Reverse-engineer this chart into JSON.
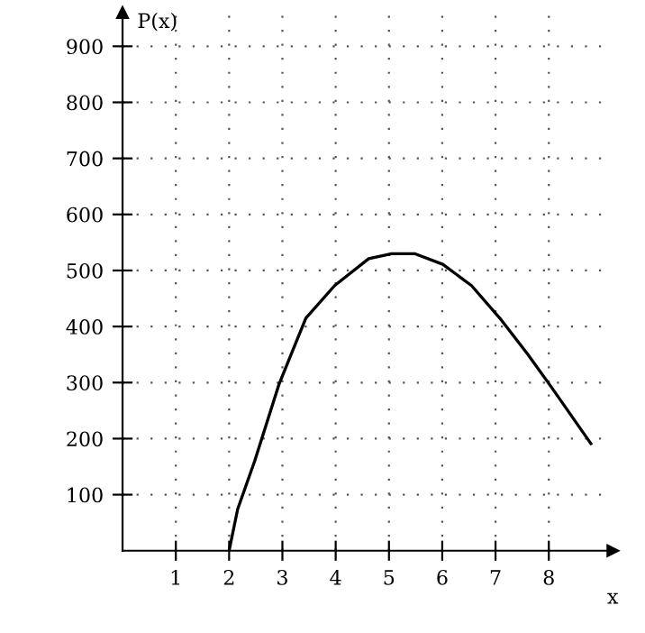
{
  "chart_data": {
    "type": "line",
    "xlabel": "x",
    "ylabel": "P(x)",
    "series": [
      {
        "color": "#000000",
        "x": [
          2,
          2.16,
          2.48,
          2.94,
          3.44,
          3.98,
          4.62,
          5.05,
          5.48,
          6.01,
          6.55,
          7.08,
          7.6,
          8.04,
          8.79
        ],
        "values": [
          0,
          74,
          160,
          298,
          415,
          473,
          521,
          530,
          530,
          511,
          473,
          415,
          351,
          293,
          191
        ]
      }
    ],
    "xlim": [
      0,
      9.2
    ],
    "ylim": [
      0,
      960
    ],
    "xticks": [
      1,
      2,
      3,
      4,
      5,
      6,
      7,
      8
    ],
    "yticks": [
      100,
      200,
      300,
      400,
      500,
      600,
      700,
      800,
      900
    ],
    "grid": true,
    "marker": "none",
    "line_style": "solid"
  }
}
